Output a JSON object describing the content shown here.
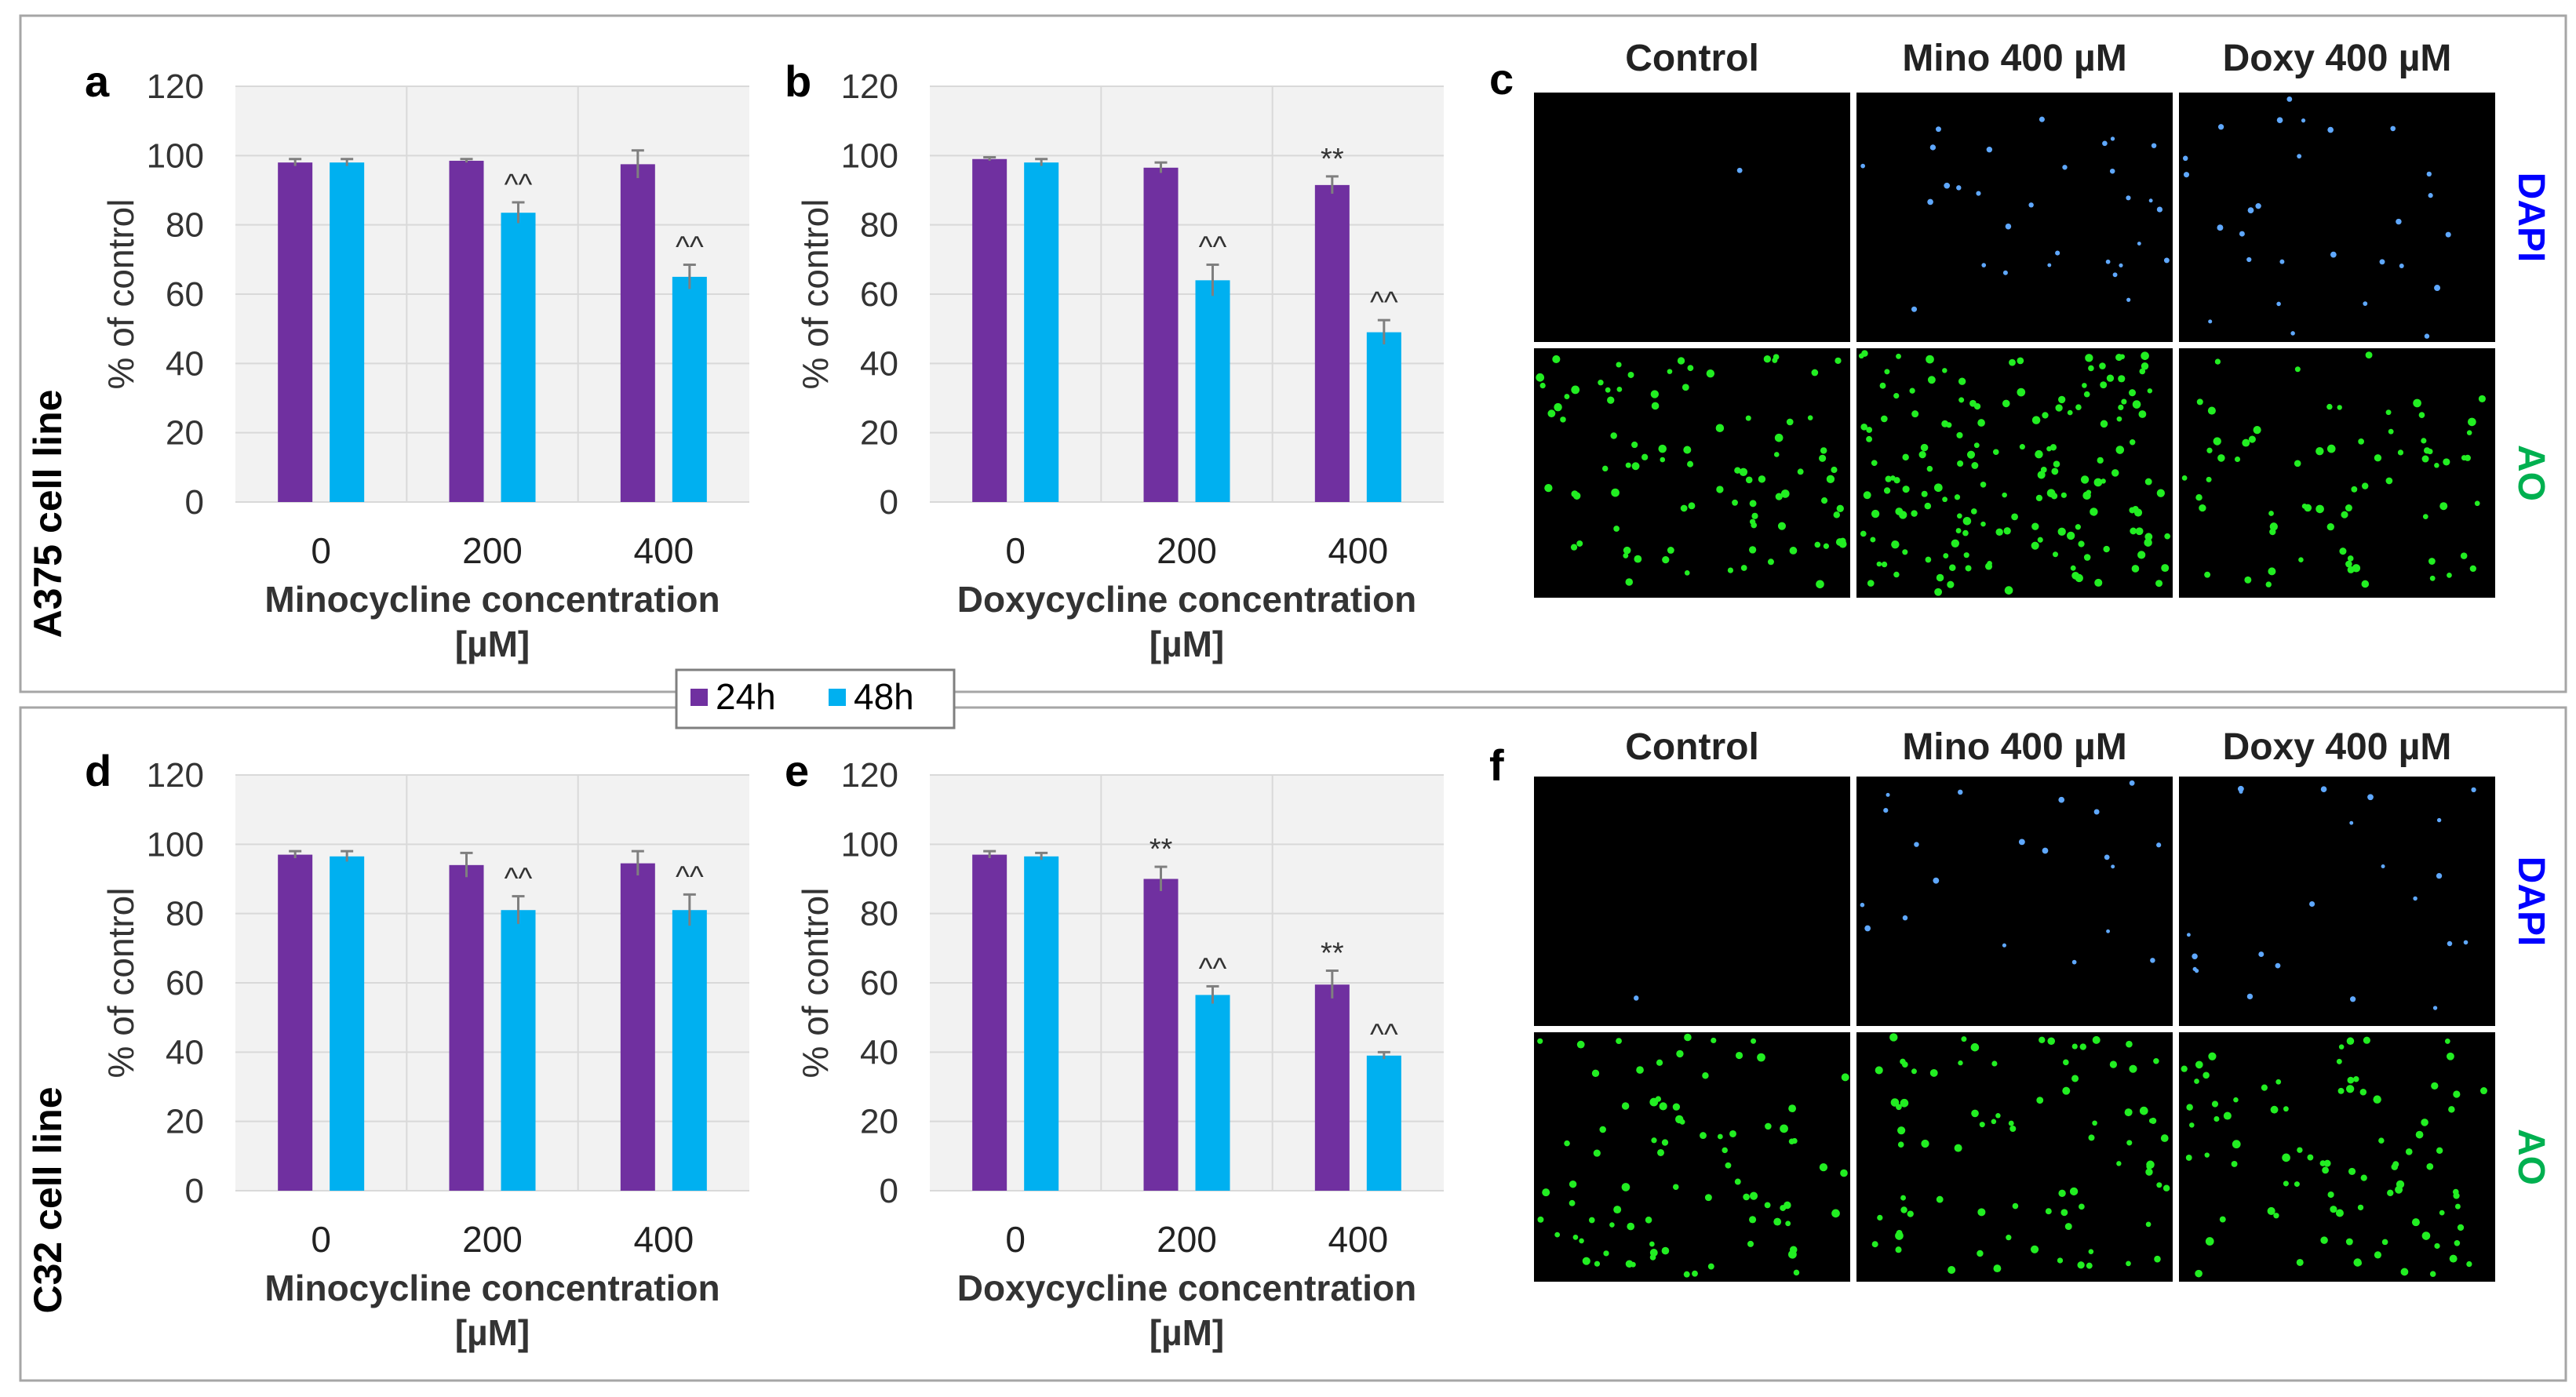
{
  "colors": {
    "c24": "#7030A0",
    "c48": "#00B0F0",
    "err": "#7f7f7f",
    "dapi": "#0000ff",
    "ao": "#00b050",
    "dot_dapi": "#5fa8ff",
    "dot_ao": "#22ee22",
    "grid": "#d9d9d9",
    "plot_bg": "#f2f2f2"
  },
  "rows": [
    {
      "label": "A375 cell line"
    },
    {
      "label": "C32 cell line"
    }
  ],
  "legend": {
    "items": [
      {
        "label": "24h",
        "color": "#7030A0"
      },
      {
        "label": "48h",
        "color": "#00B0F0"
      }
    ]
  },
  "chart_data": [
    {
      "panel": "a",
      "type": "bar",
      "categories": [
        "0",
        "200",
        "400"
      ],
      "xlabel_line1": "Minocycline concentration",
      "xlabel_line2": "[µM]",
      "ylabel": "% of control",
      "ylim": [
        0,
        120
      ],
      "yticks": [
        0,
        20,
        40,
        60,
        80,
        100,
        120
      ],
      "series": [
        {
          "name": "24h",
          "values": [
            98,
            98.5,
            97.5
          ],
          "errors": [
            1,
            0.5,
            4
          ],
          "marks": [
            "",
            "",
            ""
          ]
        },
        {
          "name": "48h",
          "values": [
            98,
            83.5,
            65
          ],
          "errors": [
            1,
            3,
            3.5
          ],
          "marks": [
            "",
            "^^",
            "^^"
          ]
        }
      ]
    },
    {
      "panel": "b",
      "type": "bar",
      "categories": [
        "0",
        "200",
        "400"
      ],
      "xlabel_line1": "Doxycycline concentration",
      "xlabel_line2": "[µM]",
      "ylabel": "% of control",
      "ylim": [
        0,
        120
      ],
      "yticks": [
        0,
        20,
        40,
        60,
        80,
        100,
        120
      ],
      "series": [
        {
          "name": "24h",
          "values": [
            99,
            96.5,
            91.5
          ],
          "errors": [
            0.5,
            1.5,
            2.5
          ],
          "marks": [
            "",
            "",
            "**"
          ]
        },
        {
          "name": "48h",
          "values": [
            98,
            64,
            49
          ],
          "errors": [
            1,
            4.5,
            3.5
          ],
          "marks": [
            "",
            "^^",
            "^^"
          ]
        }
      ]
    },
    {
      "panel": "d",
      "type": "bar",
      "categories": [
        "0",
        "200",
        "400"
      ],
      "xlabel_line1": "Minocycline concentration",
      "xlabel_line2": "[µM]",
      "ylabel": "% of control",
      "ylim": [
        0,
        120
      ],
      "yticks": [
        0,
        20,
        40,
        60,
        80,
        100,
        120
      ],
      "series": [
        {
          "name": "24h",
          "values": [
            97,
            94,
            94.5
          ],
          "errors": [
            1,
            3.5,
            3.5
          ],
          "marks": [
            "",
            "",
            ""
          ]
        },
        {
          "name": "48h",
          "values": [
            96.5,
            81,
            81
          ],
          "errors": [
            1.5,
            4,
            4.5
          ],
          "marks": [
            "",
            "^^",
            "^^"
          ]
        }
      ]
    },
    {
      "panel": "e",
      "type": "bar",
      "categories": [
        "0",
        "200",
        "400"
      ],
      "xlabel_line1": "Doxycycline concentration",
      "xlabel_line2": "[µM]",
      "ylabel": "% of control",
      "ylim": [
        0,
        120
      ],
      "yticks": [
        0,
        20,
        40,
        60,
        80,
        100,
        120
      ],
      "series": [
        {
          "name": "24h",
          "values": [
            97,
            90,
            59.5
          ],
          "errors": [
            1,
            3.5,
            4
          ],
          "marks": [
            "",
            "**",
            "**"
          ]
        },
        {
          "name": "48h",
          "values": [
            96.5,
            56.5,
            39
          ],
          "errors": [
            1,
            2.5,
            1
          ],
          "marks": [
            "",
            "^^",
            "^^"
          ]
        }
      ]
    }
  ],
  "micro_panels": [
    {
      "panel": "c",
      "columns": [
        "Control",
        "Mino 400 µM",
        "Doxy 400 µM"
      ],
      "channels": [
        "DAPI",
        "AO"
      ],
      "cell_counts": [
        [
          1,
          30,
          28
        ],
        [
          90,
          160,
          70
        ]
      ]
    },
    {
      "panel": "f",
      "columns": [
        "Control",
        "Mino 400 µM",
        "Doxy 400 µM"
      ],
      "channels": [
        "DAPI",
        "AO"
      ],
      "cell_counts": [
        [
          1,
          20,
          22
        ],
        [
          80,
          80,
          85
        ]
      ]
    }
  ]
}
